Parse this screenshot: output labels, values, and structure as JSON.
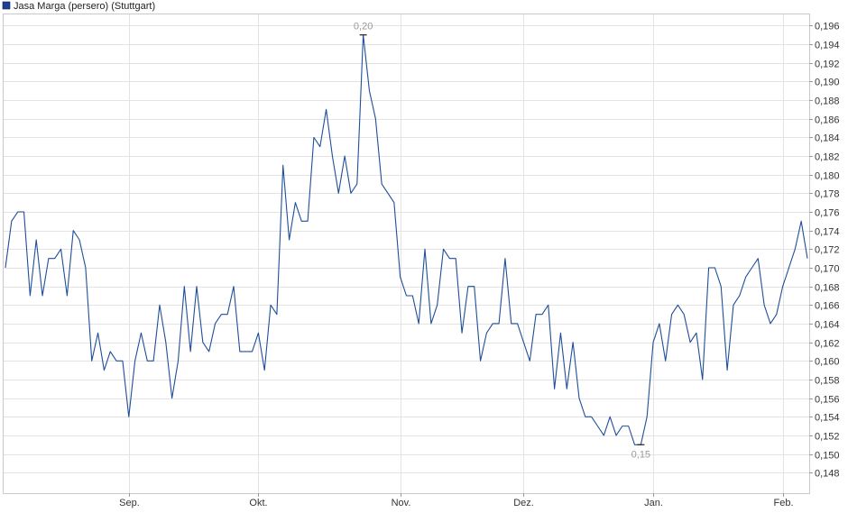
{
  "chart_data": {
    "type": "line",
    "legend": {
      "label": "Jasa Marga (persero) (Stuttgart)",
      "color": "#1f3f8f",
      "position": "top-left"
    },
    "series": [
      {
        "name": "Jasa Marga (persero) (Stuttgart)",
        "color": "#1f4e9a",
        "values": [
          0.17,
          0.175,
          0.176,
          0.176,
          0.167,
          0.173,
          0.167,
          0.171,
          0.171,
          0.172,
          0.167,
          0.174,
          0.173,
          0.17,
          0.16,
          0.163,
          0.159,
          0.161,
          0.16,
          0.16,
          0.154,
          0.16,
          0.163,
          0.16,
          0.16,
          0.166,
          0.162,
          0.156,
          0.16,
          0.168,
          0.161,
          0.168,
          0.162,
          0.161,
          0.164,
          0.165,
          0.165,
          0.168,
          0.161,
          0.161,
          0.161,
          0.163,
          0.159,
          0.166,
          0.165,
          0.181,
          0.173,
          0.177,
          0.175,
          0.175,
          0.184,
          0.183,
          0.187,
          0.182,
          0.178,
          0.182,
          0.178,
          0.179,
          0.195,
          0.189,
          0.186,
          0.179,
          0.178,
          0.177,
          0.169,
          0.167,
          0.167,
          0.164,
          0.172,
          0.164,
          0.166,
          0.172,
          0.171,
          0.171,
          0.163,
          0.168,
          0.168,
          0.16,
          0.163,
          0.164,
          0.164,
          0.171,
          0.164,
          0.164,
          0.162,
          0.16,
          0.165,
          0.165,
          0.166,
          0.157,
          0.163,
          0.157,
          0.162,
          0.156,
          0.154,
          0.154,
          0.153,
          0.152,
          0.154,
          0.152,
          0.153,
          0.153,
          0.151,
          0.151,
          0.154,
          0.162,
          0.164,
          0.16,
          0.165,
          0.166,
          0.165,
          0.162,
          0.163,
          0.158,
          0.17,
          0.17,
          0.168,
          0.159,
          0.166,
          0.167,
          0.169,
          0.17,
          0.171,
          0.166,
          0.164,
          0.165,
          0.168,
          0.17,
          0.172,
          0.175,
          0.171
        ]
      }
    ],
    "x_ticks": [
      "Sep.",
      "Okt.",
      "Nov.",
      "Dez.",
      "Jan.",
      "Feb."
    ],
    "x_tick_index": [
      20,
      41,
      64,
      84,
      105,
      126
    ],
    "y_ticks": [
      "0,148",
      "0,150",
      "0,152",
      "0,154",
      "0,156",
      "0,158",
      "0,160",
      "0,162",
      "0,164",
      "0,166",
      "0,168",
      "0,170",
      "0,172",
      "0,174",
      "0,176",
      "0,178",
      "0,180",
      "0,182",
      "0,184",
      "0,186",
      "0,188",
      "0,190",
      "0,192",
      "0,194",
      "0,196"
    ],
    "y_tick_values": [
      0.148,
      0.15,
      0.152,
      0.154,
      0.156,
      0.158,
      0.16,
      0.162,
      0.164,
      0.166,
      0.168,
      0.17,
      0.172,
      0.174,
      0.176,
      0.178,
      0.18,
      0.182,
      0.184,
      0.186,
      0.188,
      0.19,
      0.192,
      0.194,
      0.196
    ],
    "ylim": [
      0.1458,
      0.1972
    ],
    "y_axis_side": "right",
    "grid": true,
    "annotations": [
      {
        "label": "0,20",
        "index": 58,
        "value": 0.195,
        "kind": "high"
      },
      {
        "label": "0,15",
        "index": 103,
        "value": 0.151,
        "kind": "low"
      }
    ]
  }
}
